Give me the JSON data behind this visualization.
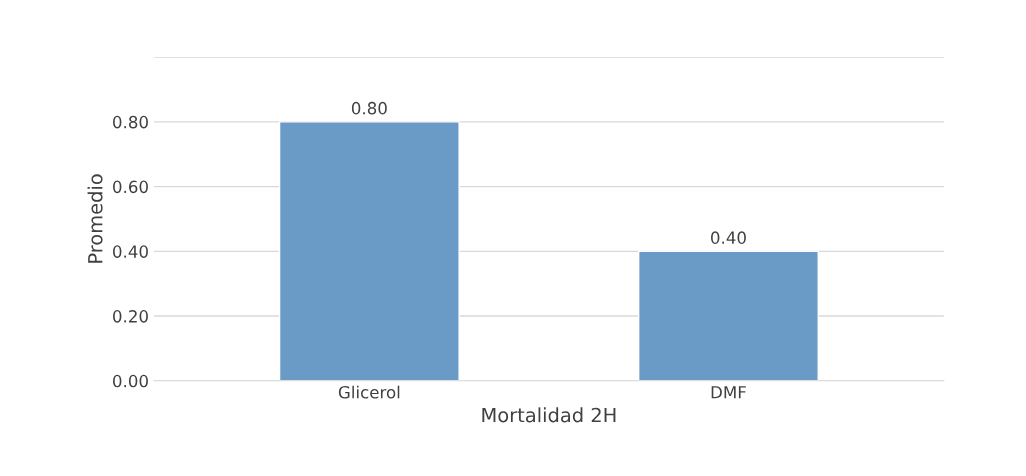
{
  "chart_data": {
    "type": "bar",
    "xlabel": "Mortalidad 2H",
    "ylabel": "Promedio",
    "categories": [
      "Glicerol",
      "DMF"
    ],
    "values": [
      0.8,
      0.4
    ],
    "color": "#5b9bd5",
    "value_labels": [
      "0.80",
      "0.40"
    ],
    "ylim": [
      0,
      1.0
    ],
    "yticks": [
      {
        "value": 0,
        "label": "0.00"
      },
      {
        "value": 0.2,
        "label": "0.20"
      },
      {
        "value": 0.4,
        "label": "0.40"
      },
      {
        "value": 0.6,
        "label": "0.60"
      },
      {
        "value": 0.8,
        "label": "0.80"
      },
      {
        "value": 1.0,
        "label": null
      }
    ],
    "grid": "y"
  }
}
